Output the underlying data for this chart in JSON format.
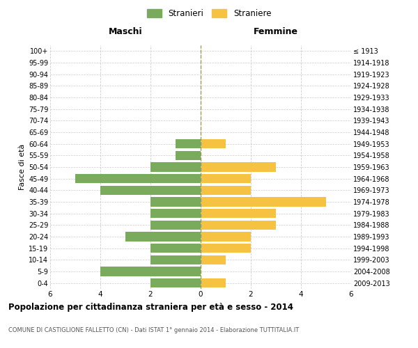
{
  "age_groups": [
    "0-4",
    "5-9",
    "10-14",
    "15-19",
    "20-24",
    "25-29",
    "30-34",
    "35-39",
    "40-44",
    "45-49",
    "50-54",
    "55-59",
    "60-64",
    "65-69",
    "70-74",
    "75-79",
    "80-84",
    "85-89",
    "90-94",
    "95-99",
    "100+"
  ],
  "birth_years": [
    "2009-2013",
    "2004-2008",
    "1999-2003",
    "1994-1998",
    "1989-1993",
    "1984-1988",
    "1979-1983",
    "1974-1978",
    "1969-1973",
    "1964-1968",
    "1959-1963",
    "1954-1958",
    "1949-1953",
    "1944-1948",
    "1939-1943",
    "1934-1938",
    "1929-1933",
    "1924-1928",
    "1919-1923",
    "1914-1918",
    "≤ 1913"
  ],
  "males": [
    2,
    4,
    2,
    2,
    3,
    2,
    2,
    2,
    4,
    5,
    2,
    1,
    1,
    0,
    0,
    0,
    0,
    0,
    0,
    0,
    0
  ],
  "females": [
    1,
    0,
    1,
    2,
    2,
    3,
    3,
    5,
    2,
    2,
    3,
    0,
    1,
    0,
    0,
    0,
    0,
    0,
    0,
    0,
    0
  ],
  "male_color": "#7aaa5c",
  "female_color": "#f5c242",
  "grid_color": "#cccccc",
  "center_line_color": "#999966",
  "title": "Popolazione per cittadinanza straniera per età e sesso - 2014",
  "subtitle": "COMUNE DI CASTIGLIONE FALLETTO (CN) - Dati ISTAT 1° gennaio 2014 - Elaborazione TUTTITALIA.IT",
  "ylabel_left": "Fasce di età",
  "header_left": "Maschi",
  "header_right": "Femmine",
  "legend_male": "Stranieri",
  "legend_female": "Straniere",
  "xlim": 6,
  "background_color": "#ffffff",
  "bar_height": 0.8
}
